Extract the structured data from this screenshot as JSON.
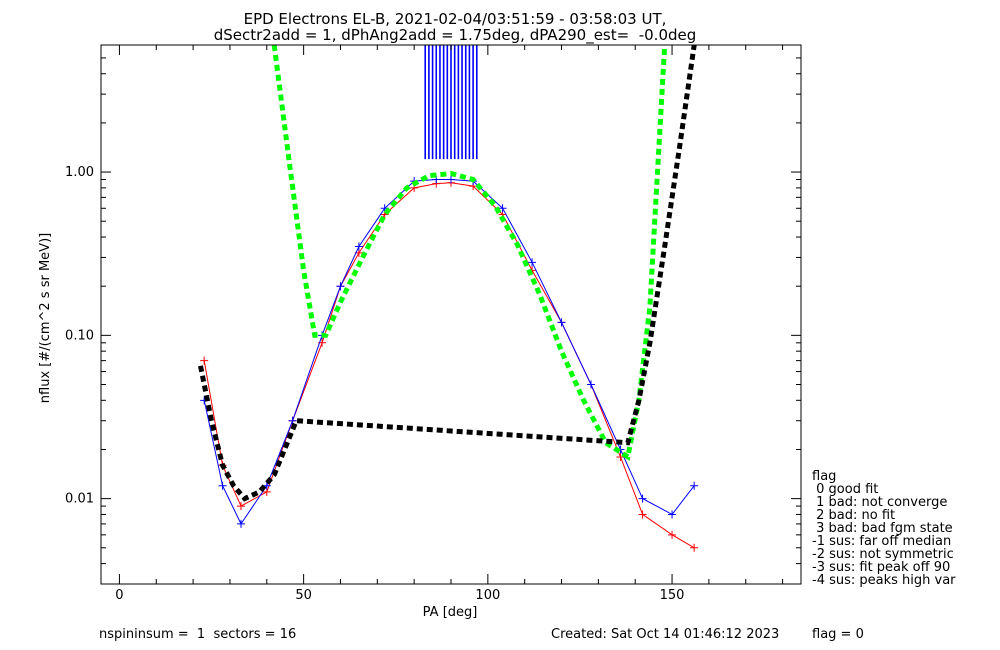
{
  "title_line1": "EPD Electrons EL-B, 2021-02-04/03:51:59 - 03:58:03 UT,",
  "title_line2": "dSectr2add = 1, dPhAng2add = 1.75deg, dPA290_est=  -0.0deg",
  "footer": {
    "left": "nspininsum =  1  sectors = 16",
    "created": "Created: Sat Oct 14 01:46:12 2023",
    "flag": "flag = 0"
  },
  "legend": {
    "title": "flag",
    "items": [
      " 0 good fit",
      " 1 bad: not converge",
      " 2 bad: no fit",
      " 3 bad: bad fgm state",
      "-1 sus: far off median",
      "-2 sus: not symmetric",
      "-3 sus: fit peak off 90",
      "-4 sus: peaks high var"
    ]
  },
  "colors": {
    "series_red": "#ff0000",
    "series_blue": "#0000ff",
    "fit_green": "#00ff00",
    "fit_black": "#000000"
  },
  "chart_data": {
    "type": "line",
    "title": "EPD Electrons EL-B, 2021-02-04/03:51:59 - 03:58:03 UT,",
    "subtitle": "dSectr2add = 1, dPhAng2add = 1.75deg, dPA290_est=  -0.0deg",
    "xlabel": "PA [deg]",
    "ylabel": "nflux [#/(cm^2 s sr MeV)]",
    "xlim": [
      -5,
      185
    ],
    "ylim": [
      0.003,
      6.0
    ],
    "yscale": "log",
    "x_ticks": [
      0,
      50,
      100,
      150
    ],
    "x_tick_labels": [
      "0",
      "50",
      "100",
      "150"
    ],
    "y_ticks": [
      0.01,
      0.1,
      1.0
    ],
    "y_tick_labels": [
      "0.01",
      "0.10",
      "1.00"
    ],
    "legend_position": "outside-right-bottom",
    "series": [
      {
        "color": "red",
        "marker": "+",
        "x": [
          23,
          28,
          33,
          40,
          47,
          55,
          60,
          65,
          72,
          80,
          86,
          90,
          96,
          104,
          112,
          120,
          128,
          136,
          142,
          150,
          156
        ],
        "y": [
          0.07,
          0.016,
          0.009,
          0.011,
          0.03,
          0.09,
          0.2,
          0.32,
          0.55,
          0.8,
          0.85,
          0.86,
          0.82,
          0.55,
          0.25,
          0.12,
          0.05,
          0.018,
          0.008,
          0.006,
          0.005
        ]
      },
      {
        "color": "blue",
        "marker": "+",
        "x": [
          23,
          28,
          33,
          40,
          47,
          55,
          60,
          65,
          72,
          80,
          86,
          90,
          96,
          104,
          112,
          120,
          128,
          136,
          142,
          150,
          156
        ],
        "y": [
          0.04,
          0.012,
          0.007,
          0.012,
          0.03,
          0.1,
          0.2,
          0.35,
          0.6,
          0.88,
          0.9,
          0.9,
          0.88,
          0.6,
          0.28,
          0.12,
          0.05,
          0.02,
          0.01,
          0.008,
          0.012
        ]
      },
      {
        "color": "green",
        "style": "dashed",
        "x": [
          42,
          46,
          50,
          53,
          56,
          60,
          66,
          72,
          78,
          84,
          90,
          96,
          102,
          108,
          114,
          120,
          126,
          132,
          138,
          141,
          144,
          148
        ],
        "y": [
          6.0,
          1.2,
          0.25,
          0.1,
          0.1,
          0.16,
          0.3,
          0.55,
          0.8,
          0.95,
          0.98,
          0.9,
          0.62,
          0.36,
          0.18,
          0.08,
          0.04,
          0.022,
          0.018,
          0.04,
          0.15,
          6.0
        ]
      },
      {
        "color": "black",
        "style": "dashed",
        "x": [
          22,
          25,
          28,
          31,
          34,
          38,
          42,
          48,
          138,
          141,
          144,
          148,
          152,
          156
        ],
        "y": [
          0.065,
          0.03,
          0.016,
          0.012,
          0.01,
          0.011,
          0.014,
          0.03,
          0.022,
          0.04,
          0.09,
          0.35,
          1.4,
          6.0
        ]
      }
    ],
    "vertical_bars": {
      "color": "blue",
      "x": [
        83,
        84,
        85,
        86,
        87,
        88,
        89,
        90,
        91,
        92,
        93,
        94,
        95,
        96,
        97
      ],
      "y_from": 1.2,
      "y_to": 6.0
    }
  }
}
